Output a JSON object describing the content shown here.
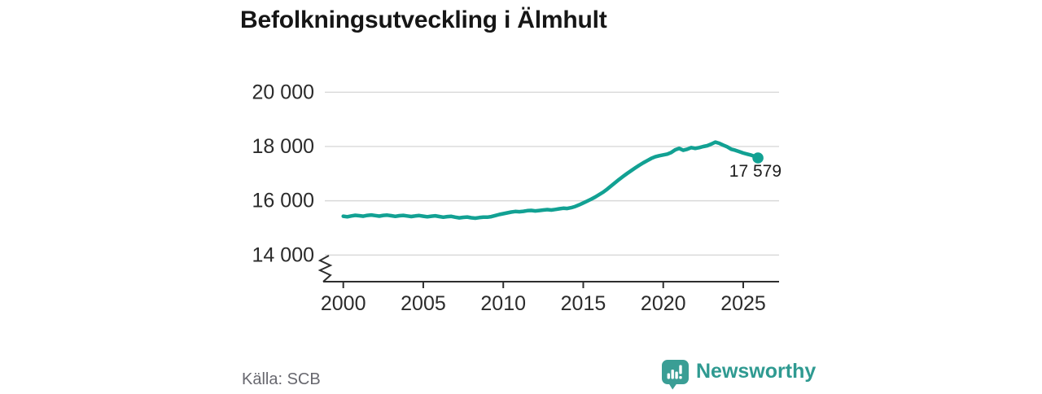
{
  "header": {
    "title": "Befolkningsutveckling i Älmhult"
  },
  "footer": {
    "source": "Källa: SCB",
    "logo_text": "Newsworthy"
  },
  "colors": {
    "line": "#12a193",
    "grid": "#d9d9d9",
    "axis": "#2e2e2e",
    "tick_label": "#2b2b2b",
    "title": "#161616",
    "source": "#68686f",
    "logo": "#2f9a91"
  },
  "chart_data": {
    "type": "line",
    "title": "Befolkningsutveckling i Älmhult",
    "xlabel": "",
    "ylabel": "",
    "grid": "horizontal",
    "legend": "none",
    "axis_break": true,
    "x_ticks": {
      "values": [
        2000,
        2005,
        2010,
        2015,
        2020,
        2025
      ],
      "labels": [
        "2000",
        "2005",
        "2010",
        "2015",
        "2020",
        "2025"
      ]
    },
    "y_ticks": {
      "values": [
        14000,
        16000,
        18000,
        20000
      ],
      "labels": [
        "14 000",
        "16 000",
        "18 000",
        "20 000"
      ]
    },
    "ylim_display": [
      14000,
      20000
    ],
    "xlim_display": [
      2000,
      2026
    ],
    "end_label": "17 579",
    "end_value": 17579,
    "series": [
      {
        "points": [
          [
            2000.0,
            15430
          ],
          [
            2000.25,
            15410
          ],
          [
            2000.5,
            15440
          ],
          [
            2000.75,
            15465
          ],
          [
            2001.0,
            15450
          ],
          [
            2001.25,
            15430
          ],
          [
            2001.5,
            15460
          ],
          [
            2001.75,
            15475
          ],
          [
            2002.0,
            15455
          ],
          [
            2002.25,
            15435
          ],
          [
            2002.5,
            15460
          ],
          [
            2002.75,
            15470
          ],
          [
            2003.0,
            15450
          ],
          [
            2003.25,
            15425
          ],
          [
            2003.5,
            15450
          ],
          [
            2003.75,
            15460
          ],
          [
            2004.0,
            15440
          ],
          [
            2004.25,
            15420
          ],
          [
            2004.5,
            15440
          ],
          [
            2004.75,
            15455
          ],
          [
            2005.0,
            15430
          ],
          [
            2005.25,
            15410
          ],
          [
            2005.5,
            15430
          ],
          [
            2005.75,
            15445
          ],
          [
            2006.0,
            15420
          ],
          [
            2006.25,
            15395
          ],
          [
            2006.5,
            15415
          ],
          [
            2006.75,
            15425
          ],
          [
            2007.0,
            15395
          ],
          [
            2007.25,
            15370
          ],
          [
            2007.5,
            15390
          ],
          [
            2007.75,
            15400
          ],
          [
            2008.0,
            15375
          ],
          [
            2008.25,
            15360
          ],
          [
            2008.5,
            15380
          ],
          [
            2008.75,
            15395
          ],
          [
            2009.0,
            15395
          ],
          [
            2009.25,
            15415
          ],
          [
            2009.5,
            15455
          ],
          [
            2009.75,
            15495
          ],
          [
            2010.0,
            15525
          ],
          [
            2010.25,
            15555
          ],
          [
            2010.5,
            15585
          ],
          [
            2010.75,
            15605
          ],
          [
            2011.0,
            15595
          ],
          [
            2011.25,
            15610
          ],
          [
            2011.5,
            15635
          ],
          [
            2011.75,
            15645
          ],
          [
            2012.0,
            15625
          ],
          [
            2012.25,
            15640
          ],
          [
            2012.5,
            15660
          ],
          [
            2012.75,
            15675
          ],
          [
            2013.0,
            15660
          ],
          [
            2013.25,
            15680
          ],
          [
            2013.5,
            15705
          ],
          [
            2013.75,
            15725
          ],
          [
            2014.0,
            15715
          ],
          [
            2014.25,
            15745
          ],
          [
            2014.5,
            15790
          ],
          [
            2014.75,
            15850
          ],
          [
            2015.0,
            15920
          ],
          [
            2015.25,
            15990
          ],
          [
            2015.5,
            16060
          ],
          [
            2015.75,
            16140
          ],
          [
            2016.0,
            16230
          ],
          [
            2016.25,
            16320
          ],
          [
            2016.5,
            16430
          ],
          [
            2016.75,
            16550
          ],
          [
            2017.0,
            16670
          ],
          [
            2017.25,
            16790
          ],
          [
            2017.5,
            16900
          ],
          [
            2017.75,
            17010
          ],
          [
            2018.0,
            17110
          ],
          [
            2018.25,
            17210
          ],
          [
            2018.5,
            17310
          ],
          [
            2018.75,
            17400
          ],
          [
            2019.0,
            17480
          ],
          [
            2019.25,
            17560
          ],
          [
            2019.5,
            17620
          ],
          [
            2019.75,
            17660
          ],
          [
            2020.0,
            17690
          ],
          [
            2020.25,
            17720
          ],
          [
            2020.5,
            17780
          ],
          [
            2020.75,
            17880
          ],
          [
            2021.0,
            17930
          ],
          [
            2021.25,
            17860
          ],
          [
            2021.5,
            17900
          ],
          [
            2021.75,
            17960
          ],
          [
            2022.0,
            17930
          ],
          [
            2022.25,
            17960
          ],
          [
            2022.5,
            18000
          ],
          [
            2022.75,
            18030
          ],
          [
            2023.0,
            18090
          ],
          [
            2023.25,
            18160
          ],
          [
            2023.5,
            18120
          ],
          [
            2023.75,
            18050
          ],
          [
            2024.0,
            17990
          ],
          [
            2024.25,
            17900
          ],
          [
            2024.5,
            17860
          ],
          [
            2024.75,
            17810
          ],
          [
            2025.0,
            17760
          ],
          [
            2025.25,
            17720
          ],
          [
            2025.5,
            17680
          ],
          [
            2025.75,
            17630
          ],
          [
            2025.92,
            17579
          ]
        ]
      }
    ]
  }
}
